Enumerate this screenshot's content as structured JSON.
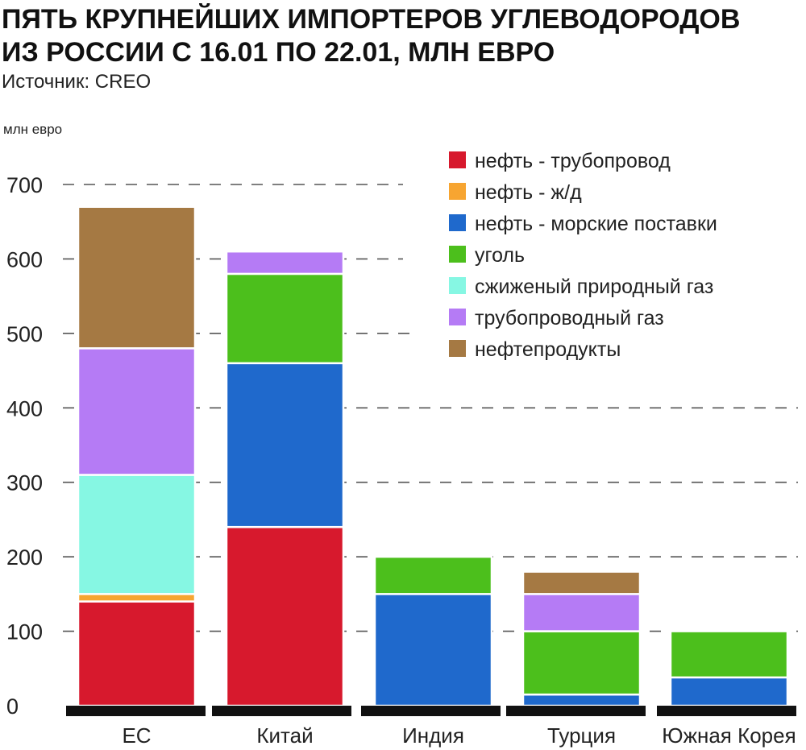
{
  "chart_data": {
    "type": "bar",
    "stacked": true,
    "title_lines": [
      "ПЯТЬ КРУПНЕЙШИХ ИМПОРТЕРОВ УГЛЕВОДОРОДОВ",
      "ИЗ РОССИИ С 16.01 ПО 22.01, МЛН ЕВРО"
    ],
    "subtitle": "Источник: CREO",
    "ylabel": "млн евро",
    "ylim": [
      0,
      700
    ],
    "yticks": [
      0,
      100,
      200,
      300,
      400,
      500,
      600,
      700
    ],
    "grid": "dashed horizontal",
    "legend_position": "top-right",
    "categories": [
      "ЕС",
      "Китай",
      "Индия",
      "Турция",
      "Южная Корея"
    ],
    "series": [
      {
        "name": "нефть - трубопровод",
        "color": "#d7192d",
        "values": [
          140,
          240,
          0,
          0,
          0
        ]
      },
      {
        "name": "нефть - ж/д",
        "color": "#f7a531",
        "values": [
          10,
          0,
          0,
          0,
          0
        ]
      },
      {
        "name": "нефть - морские поставки",
        "color": "#1f69cc",
        "values": [
          0,
          220,
          150,
          15,
          38
        ]
      },
      {
        "name": "уголь",
        "color": "#4cbf1c",
        "values": [
          0,
          120,
          50,
          85,
          62
        ]
      },
      {
        "name": "сжиженый природный газ",
        "color": "#86f7e3",
        "values": [
          160,
          0,
          0,
          0,
          0
        ]
      },
      {
        "name": "трубопроводный газ",
        "color": "#b57bf5",
        "values": [
          170,
          30,
          0,
          50,
          0
        ]
      },
      {
        "name": "нефтепродукты",
        "color": "#a57943",
        "values": [
          190,
          0,
          0,
          30,
          0
        ]
      }
    ]
  }
}
